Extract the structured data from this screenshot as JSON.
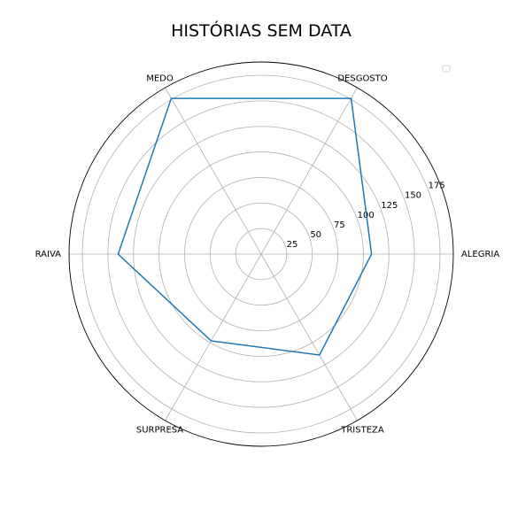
{
  "chart_data": {
    "type": "radar",
    "title": "HISTÓRIAS SEM DATA",
    "categories": [
      "ALEGRIA",
      "DESGOSTO",
      "MEDO",
      "RAIVA",
      "SURPRESA",
      "TRISTEZA"
    ],
    "values": [
      108,
      176,
      176,
      140,
      98,
      114
    ],
    "radial_ticks": [
      25,
      50,
      75,
      100,
      125,
      150,
      175
    ],
    "rlim": [
      0,
      188
    ],
    "grid": true,
    "legend": "top-right",
    "colors": {
      "series": "#1f77b4",
      "grid": "#b0b0b0",
      "frame": "#000000"
    }
  }
}
